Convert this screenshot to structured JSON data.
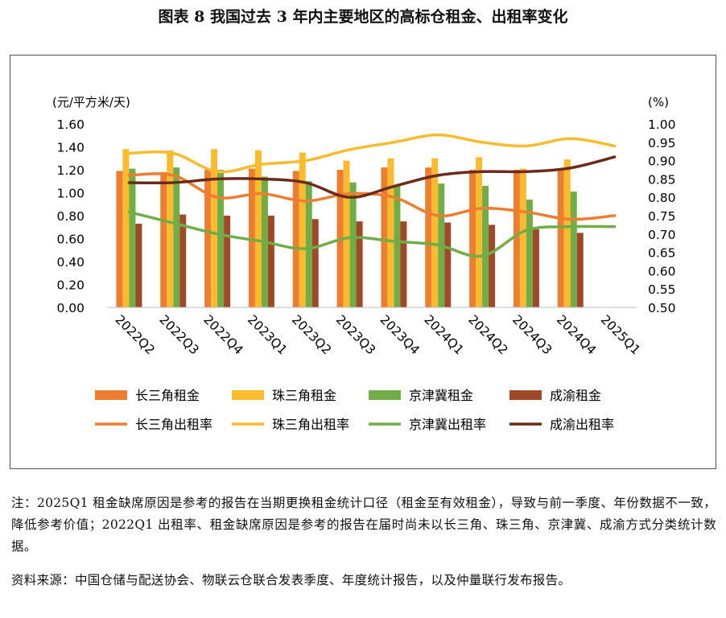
{
  "title": "图表 8  我国过去 3 年内主要地区的高标仓租金、出租率变化",
  "chart_data": {
    "type": "bar+line",
    "categories": [
      "2022Q2",
      "2022Q3",
      "2022Q4",
      "2023Q1",
      "2023Q2",
      "2023Q3",
      "2023Q4",
      "2024Q1",
      "2024Q2",
      "2024Q3",
      "2024Q4",
      "2025Q1"
    ],
    "y_left_label": "(元/平方米/天)",
    "y_right_label": "(%)",
    "y_left_ticks": [
      "0.00",
      "0.20",
      "0.40",
      "0.60",
      "0.80",
      "1.00",
      "1.20",
      "1.40",
      "1.60"
    ],
    "y_right_ticks": [
      "0.50",
      "0.55",
      "0.60",
      "0.65",
      "0.70",
      "0.75",
      "0.80",
      "0.85",
      "0.90",
      "0.95",
      "1.00"
    ],
    "y_left_range": [
      0,
      1.6
    ],
    "y_right_range": [
      0.5,
      1.0
    ],
    "bar_series": [
      {
        "name": "长三角租金",
        "color": "#ED7D31",
        "values": [
          1.19,
          1.18,
          1.2,
          1.21,
          1.19,
          1.2,
          1.22,
          1.22,
          1.2,
          1.2,
          1.21,
          null
        ]
      },
      {
        "name": "珠三角租金",
        "color": "#FBBB2E",
        "values": [
          1.38,
          1.37,
          1.38,
          1.37,
          1.35,
          1.28,
          1.3,
          1.3,
          1.31,
          1.21,
          1.29,
          null
        ]
      },
      {
        "name": "京津冀租金",
        "color": "#70AD47",
        "values": [
          1.21,
          1.22,
          1.2,
          1.14,
          1.1,
          1.09,
          1.07,
          1.08,
          1.06,
          0.94,
          1.01,
          null
        ]
      },
      {
        "name": "成渝租金",
        "color": "#9E4A28",
        "values": [
          0.73,
          0.81,
          0.8,
          0.8,
          0.77,
          0.75,
          0.75,
          0.74,
          0.72,
          0.68,
          0.65,
          null
        ]
      }
    ],
    "line_series": [
      {
        "name": "长三角出租率",
        "color": "#ED7D31",
        "values": [
          0.86,
          0.86,
          0.8,
          0.81,
          0.79,
          0.81,
          0.8,
          0.75,
          0.77,
          0.76,
          0.74,
          0.75
        ]
      },
      {
        "name": "珠三角出租率",
        "color": "#FBBB2E",
        "values": [
          0.92,
          0.92,
          0.87,
          0.89,
          0.9,
          0.93,
          0.95,
          0.97,
          0.95,
          0.94,
          0.96,
          0.94
        ]
      },
      {
        "name": "京津冀出租率",
        "color": "#70AD47",
        "values": [
          0.76,
          0.73,
          0.7,
          0.68,
          0.66,
          0.69,
          0.68,
          0.67,
          0.64,
          0.71,
          0.72,
          0.72
        ]
      },
      {
        "name": "成渝出租率",
        "color": "#6B2A1A",
        "values": [
          0.84,
          0.84,
          0.85,
          0.85,
          0.84,
          0.8,
          0.83,
          0.86,
          0.87,
          0.87,
          0.88,
          0.91
        ]
      }
    ],
    "legend_position": "bottom",
    "grid": false
  },
  "note": "注：2025Q1 租金缺席原因是参考的报告在当期更换租金统计口径（租金至有效租金），导致与前一季度、年份数据不一致，降低参考价值；2022Q1 出租率、租金缺席原因是参考的报告在届时尚未以长三角、珠三角、京津冀、成渝方式分类统计数据。",
  "source": "资料来源：中国仓储与配送协会、物联云仓联合发表季度、年度统计报告，以及仲量联行发布报告。"
}
